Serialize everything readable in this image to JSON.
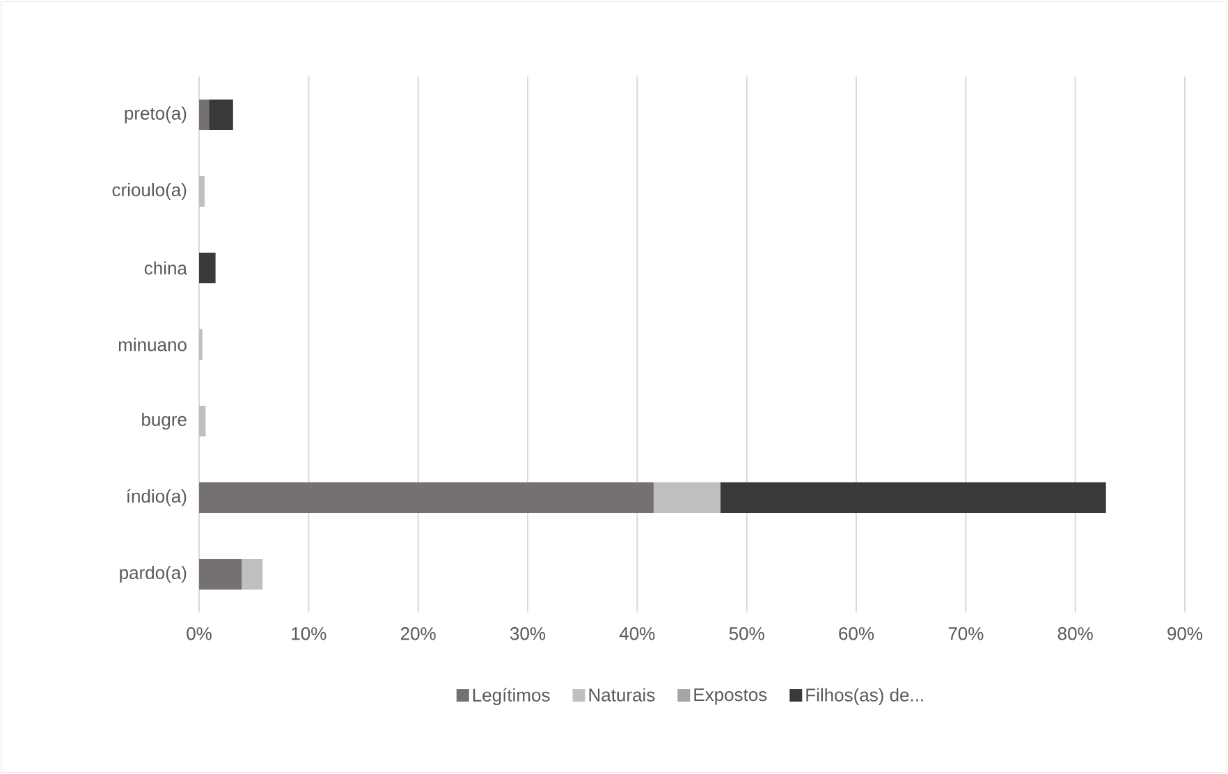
{
  "chart_data": {
    "type": "bar",
    "orientation": "horizontal",
    "stacked": true,
    "categories": [
      "preto(a)",
      "crioulo(a)",
      "china",
      "minuano",
      "bugre",
      "índio(a)",
      "pardo(a)"
    ],
    "series": [
      {
        "name": "Legítimos",
        "color": "#767171",
        "values": [
          0.9,
          0,
          0,
          0,
          0,
          41.5,
          3.9
        ]
      },
      {
        "name": "Naturais",
        "color": "#bfbfbf",
        "values": [
          0,
          0.5,
          0,
          0.3,
          0.6,
          6.1,
          1.9
        ]
      },
      {
        "name": "Expostos",
        "color": "#a5a5a5",
        "values": [
          0,
          0,
          0,
          0,
          0,
          0,
          0
        ]
      },
      {
        "name": "Filhos(as) de...",
        "color": "#3b3838",
        "values": [
          2.2,
          0,
          1.5,
          0,
          0,
          35.2,
          0
        ]
      }
    ],
    "xlim": [
      0,
      90
    ],
    "xticks": [
      {
        "value": 0,
        "label": "0%"
      },
      {
        "value": 10,
        "label": "10%"
      },
      {
        "value": 20,
        "label": "20%"
      },
      {
        "value": 30,
        "label": "30%"
      },
      {
        "value": 40,
        "label": "40%"
      },
      {
        "value": 50,
        "label": "50%"
      },
      {
        "value": 60,
        "label": "60%"
      },
      {
        "value": 70,
        "label": "70%"
      },
      {
        "value": 80,
        "label": "80%"
      },
      {
        "value": 90,
        "label": "90%"
      }
    ],
    "grid": "x",
    "legend": "bottom"
  }
}
